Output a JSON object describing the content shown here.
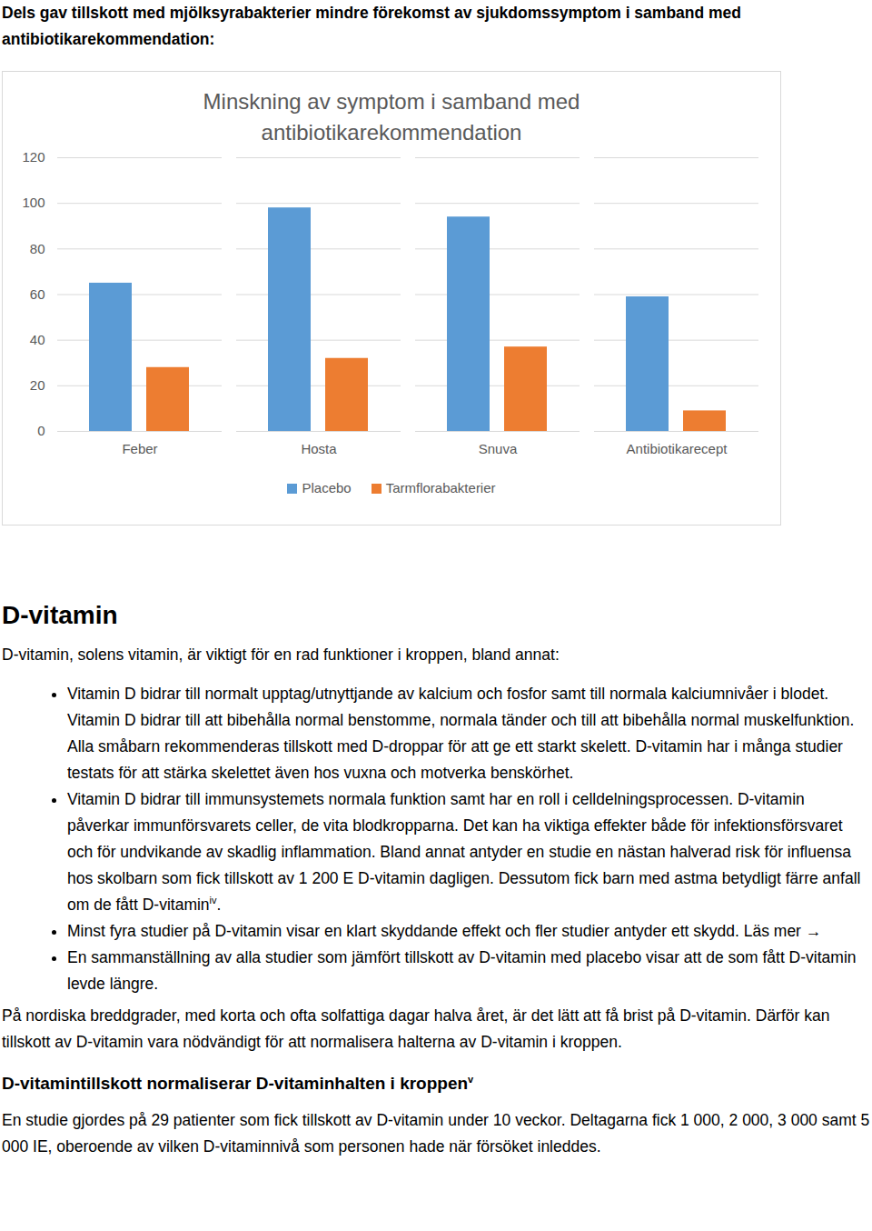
{
  "intro": "Dels gav tillskott med mjölksyrabakterier mindre förekomst av sjukdomssymptom i samband med antibiotikarekommendation:",
  "chart_data": {
    "type": "bar",
    "title": "Minskning av symptom i samband med antibiotikarekommendation",
    "categories": [
      "Feber",
      "Hosta",
      "Snuva",
      "Antibiotikarecept"
    ],
    "series": [
      {
        "name": "Placebo",
        "color": "#5b9bd5",
        "values": [
          65,
          98,
          94,
          59
        ]
      },
      {
        "name": "Tarmflorabakterier",
        "color": "#ed7d31",
        "values": [
          28,
          32,
          37,
          9
        ]
      }
    ],
    "ylim": [
      0,
      120
    ],
    "yticks": [
      0,
      20,
      40,
      60,
      80,
      100,
      120
    ],
    "grid": true,
    "legend": "bottom"
  },
  "section": {
    "heading": "D-vitamin",
    "lead": "D-vitamin, solens vitamin, är viktigt för en rad funktioner i kroppen, bland annat:",
    "bullets": [
      [
        {
          "text": "Vitamin D bidrar till normalt upptag/utnyttjande av kalcium och fosfor samt till normala kalciumnivåer i blodet. Vitamin D bidrar till att bibehålla normal benstomme, normala tänder och till att bibehålla normal muskelfunktion. Alla småbarn rekommenderas tillskott med D-droppar för att ge ett starkt skelett. D-vitamin har i många studier testats för att stärka skelettet även hos vuxna och motverka benskörhet."
        }
      ],
      [
        {
          "text": "Vitamin D bidrar till immunsystemets normala funktion samt har en roll i celldelningsprocessen. D-vitamin påverkar immunförsvarets celler, de vita blodkropparna. Det kan ha viktiga effekter både för infektionsförsvaret och för undvikande av skadlig inflammation. Bland annat antyder en studie en nästan halverad risk för influensa hos skolbarn som fick tillskott av 1 200 E D-vitamin dagligen. Dessutom fick barn med astma betydligt färre anfall om de fått D-vitamin"
        },
        {
          "sup": "iv"
        },
        {
          "text": "."
        }
      ],
      [
        {
          "text": "Minst fyra studier på D-vitamin visar en klart skyddande effekt och fler studier antyder ett skydd. Läs mer →"
        }
      ],
      [
        {
          "text": "En sammanställning av alla studier som jämfört tillskott av D-vitamin med placebo visar att de som fått D-vitamin levde längre."
        }
      ]
    ],
    "paragraph": "På nordiska breddgrader, med korta och ofta solfattiga dagar halva året, är det lätt att få brist på D-vitamin. Därför kan tillskott av D-vitamin vara nödvändigt för att normalisera halterna av D-vitamin i kroppen.",
    "subheading": [
      {
        "text": "D-vitamintillskott normaliserar D-vitaminhalten i kroppen"
      },
      {
        "sup": "v"
      }
    ],
    "final": "En studie gjordes på 29 patienter som fick tillskott av D-vitamin under 10 veckor. Deltagarna fick 1 000, 2 000, 3 000 samt 5 000 IE, oberoende av vilken D-vitaminnivå som personen hade när försöket inleddes."
  }
}
